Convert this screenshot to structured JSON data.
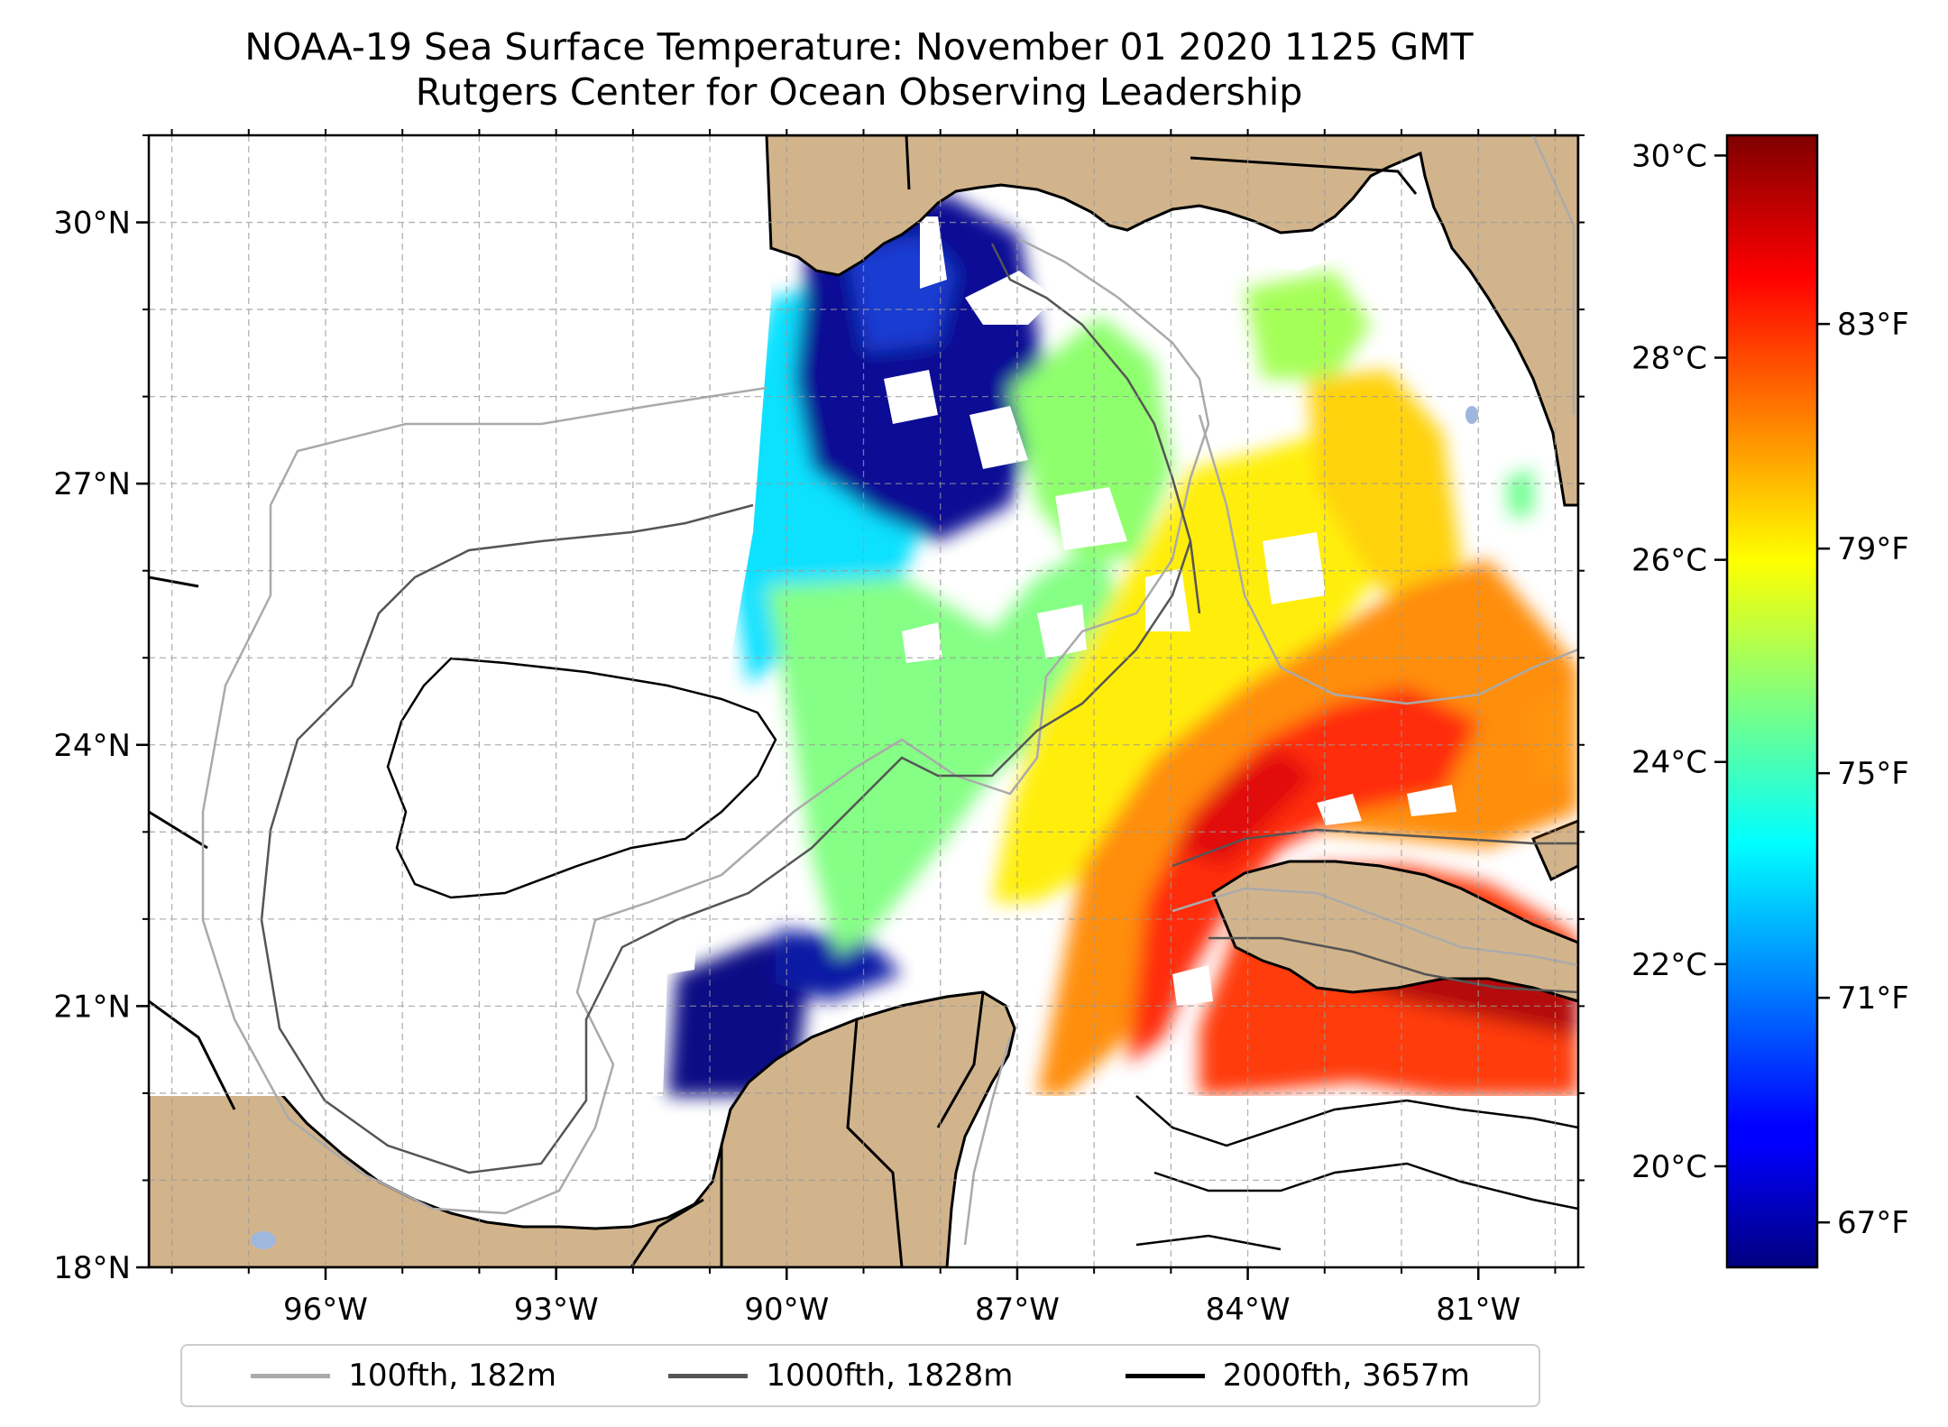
{
  "title": "NOAA-19 Sea Surface Temperature: November 01 2020 1125 GMT",
  "subtitle": "Rutgers Center for Ocean Observing Leadership",
  "map": {
    "lon_range": [
      -98.3,
      -79.7
    ],
    "lat_range": [
      18.0,
      31.0
    ],
    "lon_ticks": [
      {
        "value": -96,
        "label": "96°W"
      },
      {
        "value": -93,
        "label": "93°W"
      },
      {
        "value": -90,
        "label": "90°W"
      },
      {
        "value": -87,
        "label": "87°W"
      },
      {
        "value": -84,
        "label": "84°W"
      },
      {
        "value": -81,
        "label": "81°W"
      }
    ],
    "lat_ticks": [
      {
        "value": 18,
        "label": "18°N"
      },
      {
        "value": 21,
        "label": "21°N"
      },
      {
        "value": 24,
        "label": "24°N"
      },
      {
        "value": 27,
        "label": "27°N"
      },
      {
        "value": 30,
        "label": "30°N"
      }
    ],
    "gridlines": true,
    "land_color": "#d2b48c",
    "lake_color": "#9fb6dd"
  },
  "colorbar": {
    "colormap": "jet",
    "c_range": [
      19.0,
      30.2
    ],
    "celsius_ticks": [
      {
        "value": 20,
        "label": "20°C"
      },
      {
        "value": 22,
        "label": "22°C"
      },
      {
        "value": 24,
        "label": "24°C"
      },
      {
        "value": 26,
        "label": "26°C"
      },
      {
        "value": 28,
        "label": "28°C"
      },
      {
        "value": 30,
        "label": "30°C"
      }
    ],
    "fahrenheit_ticks": [
      {
        "value": 67,
        "label": "67°F"
      },
      {
        "value": 71,
        "label": "71°F"
      },
      {
        "value": 75,
        "label": "75°F"
      },
      {
        "value": 79,
        "label": "79°F"
      },
      {
        "value": 83,
        "label": "83°F"
      }
    ]
  },
  "legend": {
    "placement": "bottom-center",
    "items": [
      {
        "label": "100fth, 182m",
        "color": "#aaaaaa"
      },
      {
        "label": "1000fth, 1828m",
        "color": "#555555"
      },
      {
        "label": "2000fth, 3657m",
        "color": "#000000"
      }
    ]
  }
}
